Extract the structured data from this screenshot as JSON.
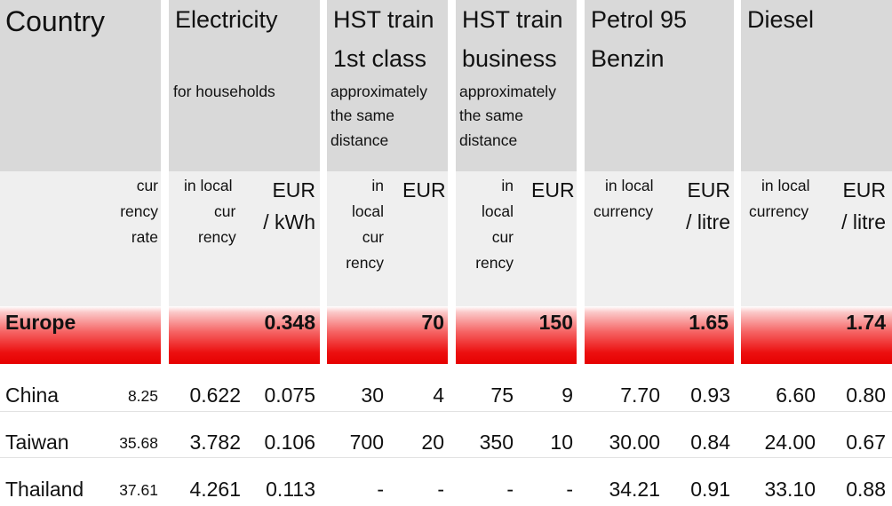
{
  "header": {
    "country": "Country",
    "electricity": {
      "line1": "Electricity",
      "sub": "for households"
    },
    "hst1": {
      "line1": "HST train",
      "line2": "1st class",
      "sub1": "approximately",
      "sub2": "the same",
      "sub3": "distance"
    },
    "hstb": {
      "line1": "HST train",
      "line2": "business",
      "sub1": "approximately",
      "sub2": "the same",
      "sub3": "distance"
    },
    "petrol": {
      "line1": "Petrol 95",
      "line2": "Benzin"
    },
    "diesel": {
      "line1": "Diesel"
    }
  },
  "subheader": {
    "rate": [
      "cur",
      "rency",
      "rate"
    ],
    "elec_local": [
      "in local",
      "cur",
      "rency"
    ],
    "elec_eur": [
      "EUR",
      "/ kWh"
    ],
    "hst1_local": [
      "in",
      "local",
      "cur",
      "rency"
    ],
    "hst1_eur": "EUR",
    "hstb_local": [
      "in",
      "local",
      "cur",
      "rency"
    ],
    "hstb_eur": "EUR",
    "petrol_local": [
      "in local",
      "currency"
    ],
    "petrol_eur": [
      "EUR",
      "/ litre"
    ],
    "diesel_local": [
      "in local",
      "currency"
    ],
    "diesel_eur": [
      "EUR",
      "/ litre"
    ]
  },
  "europe": {
    "label": "Europe",
    "electricity": "0.348",
    "hst1": "70",
    "hstb": "150",
    "petrol": "1.65",
    "diesel": "1.74"
  },
  "rows": [
    {
      "country": "China",
      "rate": "8.25",
      "elec_local": "0.622",
      "elec_eur": "0.075",
      "hst1_local": "30",
      "hst1_eur": "4",
      "hstb_local": "75",
      "hstb_eur": "9",
      "petrol_local": "7.70",
      "petrol_eur": "0.93",
      "diesel_local": "6.60",
      "diesel_eur": "0.80"
    },
    {
      "country": "Taiwan",
      "rate": "35.68",
      "elec_local": "3.782",
      "elec_eur": "0.106",
      "hst1_local": "700",
      "hst1_eur": "20",
      "hstb_local": "350",
      "hstb_eur": "10",
      "petrol_local": "30.00",
      "petrol_eur": "0.84",
      "diesel_local": "24.00",
      "diesel_eur": "0.67"
    },
    {
      "country": "Thailand",
      "rate": "37.61",
      "elec_local": "4.261",
      "elec_eur": "0.113",
      "hst1_local": "-",
      "hst1_eur": "-",
      "hstb_local": "-",
      "hstb_eur": "-",
      "petrol_local": "34.21",
      "petrol_eur": "0.91",
      "diesel_local": "33.10",
      "diesel_eur": "0.88"
    }
  ],
  "colors": {
    "header_gray": "#d9d9d9",
    "subheader_gray": "#efefef",
    "europe_red": "#e60000"
  }
}
